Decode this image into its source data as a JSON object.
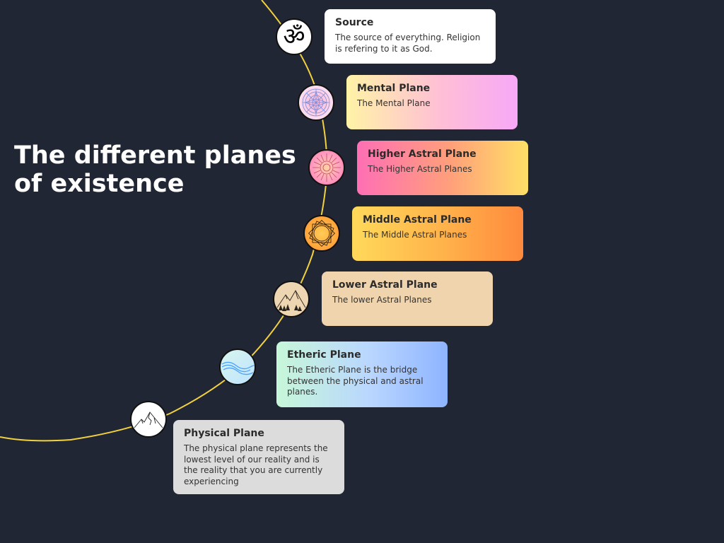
{
  "title": "The different planes of existence",
  "colors": {
    "background": "#212634",
    "arc": "#f2d13e"
  },
  "planes": [
    {
      "id": "source",
      "name": "Source",
      "description": "The source of everything. Religion is refering to it as God.",
      "icon": "om-icon"
    },
    {
      "id": "mental",
      "name": "Mental Plane",
      "description": "The Mental Plane",
      "icon": "mandala-icon"
    },
    {
      "id": "higher-astral",
      "name": "Higher Astral Plane",
      "description": "The Higher Astral Planes",
      "icon": "sun-mandala-icon"
    },
    {
      "id": "middle-astral",
      "name": "Middle Astral Plane",
      "description": "The Middle Astral Planes",
      "icon": "star-polygon-icon"
    },
    {
      "id": "lower-astral",
      "name": "Lower Astral Plane",
      "description": "The lower Astral Planes",
      "icon": "mountain-forest-icon"
    },
    {
      "id": "etheric",
      "name": "Etheric Plane",
      "description": "The Etheric Plane is the bridge between the physical and astral planes.",
      "icon": "water-wave-icon"
    },
    {
      "id": "physical",
      "name": "Physical Plane",
      "description": "The physical plane represents the lowest level of our reality and is the reality that you are currently experiencing",
      "icon": "mountain-icon"
    }
  ]
}
